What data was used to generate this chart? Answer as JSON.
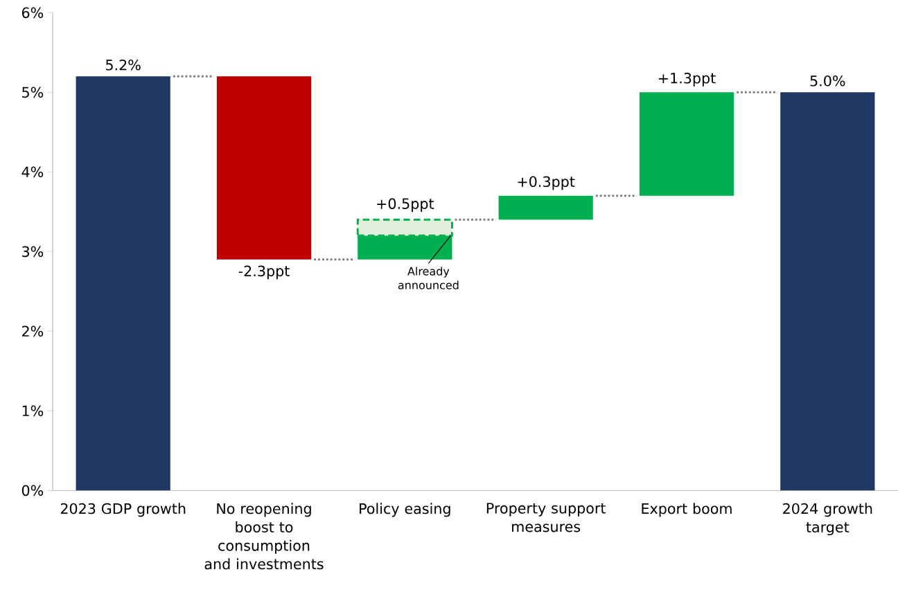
{
  "chart_data": {
    "type": "bar",
    "categories": [
      "2023 GDP growth",
      "No reopening boost to consumption and investments",
      "Policy easing",
      "Property support measures",
      "Export boom",
      "2024 growth target"
    ],
    "series": [
      {
        "values": [
          5.2,
          -2.3,
          0.3,
          0.3,
          1.3,
          5.0
        ],
        "base": [
          0,
          5.2,
          2.9,
          3.4,
          3.7,
          0
        ],
        "colors": [
          "#203864",
          "#c00000",
          "#00b050",
          "#00b050",
          "#00b050",
          "#203864"
        ],
        "value_labels": [
          "5.2%",
          "-2.3ppt",
          null,
          "+0.3ppt",
          "+1.3ppt",
          "5.0%"
        ]
      },
      {
        "values": [
          null,
          null,
          0.2,
          null,
          null,
          null
        ],
        "base": [
          null,
          null,
          3.2,
          null,
          null,
          null
        ],
        "color": "#e2efda",
        "line_style": "dashed"
      }
    ],
    "ylim": [
      0,
      6
    ],
    "yticks": [
      {
        "value": 0,
        "label": "0%"
      },
      {
        "value": 1,
        "label": "1%"
      },
      {
        "value": 2,
        "label": "2%"
      },
      {
        "value": 3,
        "label": "3%"
      },
      {
        "value": 4,
        "label": "4%"
      },
      {
        "value": 5,
        "label": "5%"
      },
      {
        "value": 6,
        "label": "6%"
      }
    ],
    "annotations": [
      {
        "text": "+0.5ppt",
        "x": "Policy easing",
        "y": 3.4
      },
      {
        "text": "Already announced",
        "x": "Policy easing",
        "y": 3.2
      }
    ],
    "stacked": false
  }
}
